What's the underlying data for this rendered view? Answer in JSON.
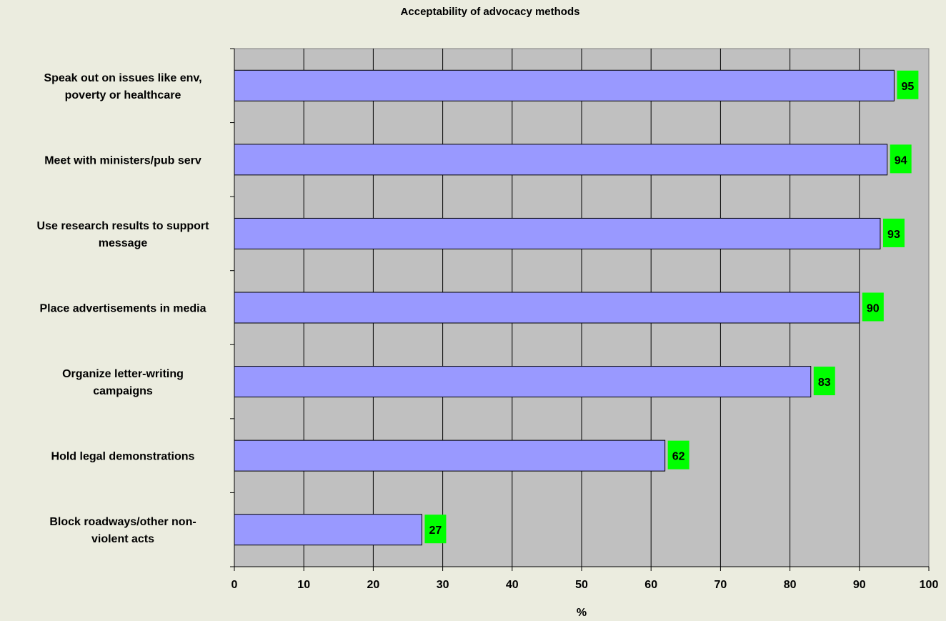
{
  "chart_data": {
    "type": "bar",
    "orientation": "horizontal",
    "title": "Acceptability of advocacy methods",
    "xlabel": "%",
    "ylabel": "",
    "xlim": [
      0,
      100
    ],
    "x_ticks": [
      0,
      10,
      20,
      30,
      40,
      50,
      60,
      70,
      80,
      90,
      100
    ],
    "grid": true,
    "categories": [
      [
        "Speak out on issues like env,",
        "poverty or healthcare"
      ],
      [
        "Meet with ministers/pub serv"
      ],
      [
        "Use research results to support",
        "message"
      ],
      [
        "Place advertisements in media"
      ],
      [
        "Organize letter-writing",
        "campaigns"
      ],
      [
        "Hold legal demonstrations"
      ],
      [
        "Block roadways/other non-",
        "violent acts"
      ]
    ],
    "values": [
      95,
      94,
      93,
      90,
      83,
      62,
      27
    ],
    "colors": {
      "bar_fill": "#9999ff",
      "plot_bg": "#c0c0c0",
      "label_bg": "#00ff00",
      "page_bg": "#ebecdf"
    }
  }
}
